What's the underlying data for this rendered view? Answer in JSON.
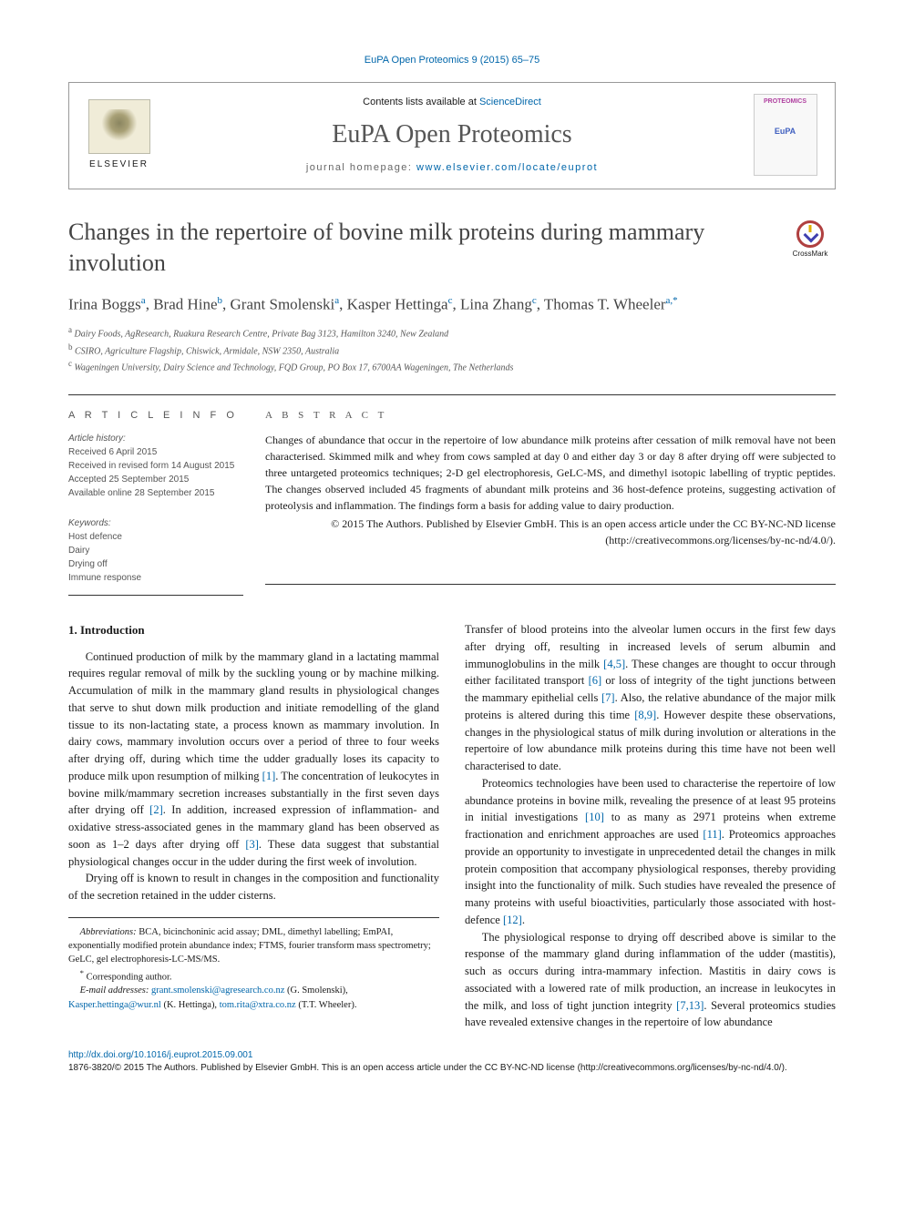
{
  "header": {
    "top_link": "EuPA Open Proteomics 9 (2015) 65–75",
    "contents_line_prefix": "Contents lists available at ",
    "contents_line_link": "ScienceDirect",
    "journal_name": "EuPA Open Proteomics",
    "homepage_prefix": "journal homepage: ",
    "homepage_link": "www.elsevier.com/locate/euprot",
    "elsevier": "ELSEVIER",
    "cover_proteo": "PROTEOMICS",
    "cover_eupa": "EuPA",
    "crossmark": "CrossMark"
  },
  "article": {
    "title": "Changes in the repertoire of bovine milk proteins during mammary involution",
    "authors_html": "Irina Boggs<sup>a</sup>, Brad Hine<sup>b</sup>, Grant Smolenski<sup>a</sup>, Kasper Hettinga<sup>c</sup>, Lina Zhang<sup>c</sup>, Thomas T. Wheeler<sup>a,*</sup>",
    "affiliations": [
      {
        "sup": "a",
        "text": "Dairy Foods, AgResearch, Ruakura Research Centre, Private Bag 3123, Hamilton 3240, New Zealand"
      },
      {
        "sup": "b",
        "text": "CSIRO, Agriculture Flagship, Chiswick, Armidale, NSW 2350, Australia"
      },
      {
        "sup": "c",
        "text": "Wageningen University, Dairy Science and Technology, FQD Group, PO Box 17, 6700AA Wageningen, The Netherlands"
      }
    ]
  },
  "info": {
    "article_info_label": "A R T I C L E  I N F O",
    "abstract_label": "A B S T R A C T",
    "history_head": "Article history:",
    "history": [
      "Received 6 April 2015",
      "Received in revised form 14 August 2015",
      "Accepted 25 September 2015",
      "Available online 28 September 2015"
    ],
    "keywords_head": "Keywords:",
    "keywords": [
      "Host defence",
      "Dairy",
      "Drying off",
      "Immune response"
    ]
  },
  "abstract": {
    "text": "Changes of abundance that occur in the repertoire of low abundance milk proteins after cessation of milk removal have not been characterised. Skimmed milk and whey from cows sampled at day 0 and either day 3 or day 8 after drying off were subjected to three untargeted proteomics techniques; 2-D gel electrophoresis, GeLC-MS, and dimethyl isotopic labelling of tryptic peptides. The changes observed included 45 fragments of abundant milk proteins and 36 host-defence proteins, suggesting activation of proteolysis and inflammation. The findings form a basis for adding value to dairy production.",
    "copyright": "© 2015 The Authors. Published by Elsevier GmbH. This is an open access article under the CC BY-NC-ND license (http://creativecommons.org/licenses/by-nc-nd/4.0/)."
  },
  "body": {
    "section1_title": "1. Introduction",
    "p1": "Continued production of milk by the mammary gland in a lactating mammal requires regular removal of milk by the suckling young or by machine milking. Accumulation of milk in the mammary gland results in physiological changes that serve to shut down milk production and initiate remodelling of the gland tissue to its non-lactating state, a process known as mammary involution. In dairy cows, mammary involution occurs over a period of three to four weeks after drying off, during which time the udder gradually loses its capacity to produce milk upon resumption of milking ",
    "r1": "[1]",
    "p1b": ". The concentration of leukocytes in bovine milk/mammary secretion increases substantially in the first seven days after drying off ",
    "r2": "[2]",
    "p1c": ". In addition, increased expression of inflammation- and oxidative stress-associated genes in the mammary gland has been observed as soon as 1–2 days after drying off ",
    "r3": "[3]",
    "p1d": ". These data suggest that substantial physiological changes occur in the udder during the first week of involution.",
    "p2a": "Drying off is known to result in changes in the composition and functionality of the secretion retained in the udder cisterns. ",
    "p2b": "Transfer of blood proteins into the alveolar lumen occurs in the first few days after drying off, resulting in increased levels of serum albumin and immunoglobulins in the milk ",
    "r45": "[4,5]",
    "p2c": ". These changes are thought to occur through either facilitated transport ",
    "r6": "[6]",
    "p2d": " or loss of integrity of the tight junctions between the mammary epithelial cells ",
    "r7": "[7]",
    "p2e": ". Also, the relative abundance of the major milk proteins is altered during this time ",
    "r89": "[8,9]",
    "p2f": ". However despite these observations, changes in the physiological status of milk during involution or alterations in the repertoire of low abundance milk proteins during this time have not been well characterised to date.",
    "p3a": "Proteomics technologies have been used to characterise the repertoire of low abundance proteins in bovine milk, revealing the presence of at least 95 proteins in initial investigations ",
    "r10": "[10]",
    "p3b": " to as many as 2971 proteins when extreme fractionation and enrichment approaches are used ",
    "r11": "[11]",
    "p3c": ". Proteomics approaches provide an opportunity to investigate in unprecedented detail the changes in milk protein composition that accompany physiological responses, thereby providing insight into the functionality of milk. Such studies have revealed the presence of many proteins with useful bioactivities, particularly those associated with host-defence ",
    "r12": "[12]",
    "p3d": ".",
    "p4a": "The physiological response to drying off described above is similar to the response of the mammary gland during inflammation of the udder (mastitis), such as occurs during intra-mammary infection. Mastitis in dairy cows is associated with a lowered rate of milk production, an increase in leukocytes in the milk, and loss of tight junction integrity ",
    "r713": "[7,13]",
    "p4b": ". Several proteomics studies have revealed extensive changes in the repertoire of low abundance"
  },
  "footnotes": {
    "abbrev_label": "Abbreviations:",
    "abbrev_text": " BCA, bicinchoninic acid assay; DML, dimethyl labelling; EmPAI, exponentially modified protein abundance index; FTMS, fourier transform mass spectrometry; GeLC, gel electrophoresis-LC-MS/MS.",
    "corr_label": "Corresponding author.",
    "email_label": "E-mail addresses:",
    "emails": [
      {
        "addr": "grant.smolenski@agresearch.co.nz",
        "who": " (G. Smolenski), "
      },
      {
        "addr": "Kasper.hettinga@wur.nl",
        "who": " (K. Hettinga), "
      },
      {
        "addr": "tom.rita@xtra.co.nz",
        "who": " (T.T. Wheeler)."
      }
    ]
  },
  "footer": {
    "doi": "http://dx.doi.org/10.1016/j.euprot.2015.09.001",
    "issn_line": "1876-3820/© 2015 The Authors. Published by Elsevier GmbH. This is an open access article under the CC BY-NC-ND license (http://creativecommons.org/licenses/by-nc-nd/4.0/)."
  },
  "colors": {
    "link": "#0066aa",
    "text": "#1a1a1a",
    "muted": "#555555",
    "rule": "#333333",
    "box_border": "#999999"
  }
}
